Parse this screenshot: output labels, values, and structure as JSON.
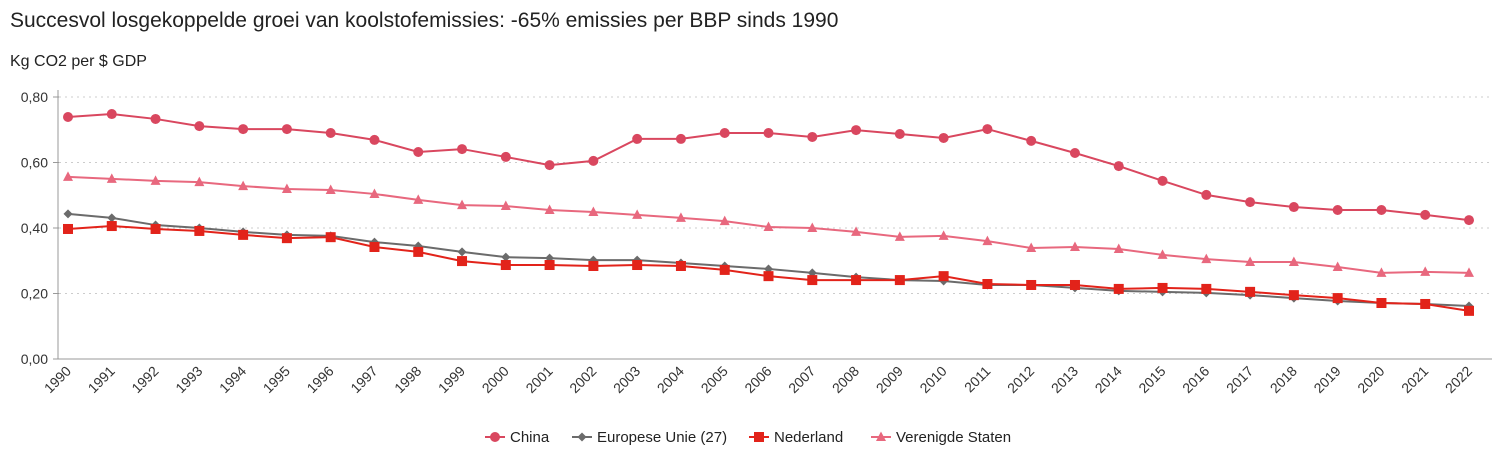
{
  "chart_data": {
    "type": "line",
    "title": "Succesvol losgekoppelde groei van koolstofemissies: -65% emissies per BBP sinds 1990",
    "ylabel": "Kg CO2 per $ GDP",
    "xlabel": "",
    "ylim": [
      0,
      0.8
    ],
    "yticks": [
      "0,00",
      "0,20",
      "0,40",
      "0,60",
      "0,80"
    ],
    "grid": "horizontal dotted",
    "legend": "bottom",
    "x": [
      "1990",
      "1991",
      "1992",
      "1993",
      "1994",
      "1995",
      "1996",
      "1997",
      "1998",
      "1999",
      "2000",
      "2001",
      "2002",
      "2003",
      "2004",
      "2005",
      "2006",
      "2007",
      "2008",
      "2009",
      "2010",
      "2011",
      "2012",
      "2013",
      "2014",
      "2015",
      "2016",
      "2017",
      "2018",
      "2019",
      "2020",
      "2021",
      "2022"
    ],
    "series": [
      {
        "name": "China",
        "color": "#d9475f",
        "marker": "circle",
        "values": [
          0.739,
          0.748,
          0.733,
          0.711,
          0.702,
          0.702,
          0.69,
          0.669,
          0.632,
          0.641,
          0.617,
          0.592,
          0.605,
          0.672,
          0.672,
          0.69,
          0.69,
          0.678,
          0.699,
          0.687,
          0.675,
          0.702,
          0.666,
          0.629,
          0.589,
          0.544,
          0.501,
          0.479,
          0.464,
          0.455,
          0.455,
          0.44,
          0.424
        ]
      },
      {
        "name": "Europese Unie (27)",
        "color": "#6b6b6b",
        "marker": "diamond",
        "values": [
          0.443,
          0.431,
          0.409,
          0.4,
          0.388,
          0.379,
          0.376,
          0.357,
          0.345,
          0.327,
          0.311,
          0.308,
          0.302,
          0.302,
          0.293,
          0.284,
          0.275,
          0.263,
          0.25,
          0.241,
          0.238,
          0.226,
          0.226,
          0.217,
          0.208,
          0.205,
          0.202,
          0.195,
          0.186,
          0.177,
          0.171,
          0.168,
          0.162
        ]
      },
      {
        "name": "Nederland",
        "color": "#e2231a",
        "marker": "square",
        "values": [
          0.397,
          0.406,
          0.397,
          0.391,
          0.379,
          0.369,
          0.372,
          0.342,
          0.327,
          0.299,
          0.287,
          0.287,
          0.284,
          0.287,
          0.284,
          0.272,
          0.253,
          0.241,
          0.241,
          0.241,
          0.253,
          0.229,
          0.226,
          0.226,
          0.214,
          0.217,
          0.214,
          0.205,
          0.195,
          0.186,
          0.171,
          0.168,
          0.147
        ]
      },
      {
        "name": "Verenigde Staten",
        "color": "#e8687e",
        "marker": "triangle",
        "values": [
          0.556,
          0.55,
          0.544,
          0.54,
          0.528,
          0.519,
          0.516,
          0.504,
          0.486,
          0.47,
          0.467,
          0.455,
          0.449,
          0.44,
          0.431,
          0.421,
          0.403,
          0.4,
          0.388,
          0.373,
          0.376,
          0.36,
          0.339,
          0.342,
          0.336,
          0.318,
          0.305,
          0.296,
          0.296,
          0.281,
          0.263,
          0.266,
          0.263
        ]
      }
    ]
  }
}
